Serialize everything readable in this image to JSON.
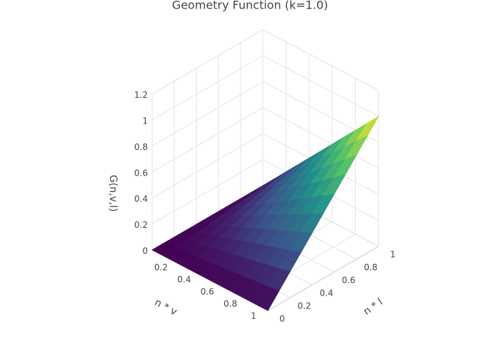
{
  "chart_data": {
    "type": "surface",
    "title": "Geometry Function (k=1.0)",
    "x_label": "n * v",
    "y_label": "n * l",
    "z_label": "G(n,v,l)",
    "x": [
      0,
      0.1,
      0.2,
      0.3,
      0.4,
      0.5,
      0.6,
      0.7,
      0.8,
      0.9,
      1
    ],
    "y": [
      0,
      0.1,
      0.2,
      0.3,
      0.4,
      0.5,
      0.6,
      0.7,
      0.8,
      0.9,
      1
    ],
    "z": [
      [
        0,
        0,
        0,
        0,
        0,
        0,
        0,
        0,
        0,
        0,
        0
      ],
      [
        0,
        0.01,
        0.02,
        0.03,
        0.04,
        0.05,
        0.06,
        0.07,
        0.08,
        0.09,
        0.1
      ],
      [
        0,
        0.02,
        0.04,
        0.06,
        0.08,
        0.1,
        0.12,
        0.14,
        0.16,
        0.18,
        0.2
      ],
      [
        0,
        0.03,
        0.06,
        0.09,
        0.12,
        0.15,
        0.18,
        0.21,
        0.24,
        0.27,
        0.3
      ],
      [
        0,
        0.04,
        0.08,
        0.12,
        0.16,
        0.2,
        0.24,
        0.28,
        0.32,
        0.36,
        0.4
      ],
      [
        0,
        0.05,
        0.1,
        0.15,
        0.2,
        0.25,
        0.3,
        0.35,
        0.4,
        0.45,
        0.5
      ],
      [
        0,
        0.06,
        0.12,
        0.18,
        0.24,
        0.3,
        0.36,
        0.42,
        0.48,
        0.54,
        0.6
      ],
      [
        0,
        0.07,
        0.14,
        0.21,
        0.28,
        0.35,
        0.42,
        0.49,
        0.56,
        0.63,
        0.7
      ],
      [
        0,
        0.08,
        0.16,
        0.24,
        0.32,
        0.4,
        0.48,
        0.56,
        0.64,
        0.72,
        0.8
      ],
      [
        0,
        0.09,
        0.18,
        0.27,
        0.36,
        0.45,
        0.54,
        0.63,
        0.72,
        0.81,
        0.9
      ],
      [
        0,
        0.1,
        0.2,
        0.3,
        0.4,
        0.5,
        0.6,
        0.7,
        0.8,
        0.9,
        1
      ]
    ],
    "colorscale": [
      "#440154",
      "#3b528b",
      "#21918c",
      "#5ec962",
      "#fde725"
    ],
    "xlim": [
      0,
      1
    ],
    "ylim": [
      0,
      1
    ],
    "zlim": [
      0,
      1.2
    ],
    "xticks": [
      0.2,
      0.4,
      0.6,
      0.8,
      1
    ],
    "yticks": [
      0,
      0.2,
      0.4,
      0.6,
      0.8,
      1
    ],
    "zticks": [
      0,
      0.2,
      0.4,
      0.6,
      0.8,
      1,
      1.2
    ],
    "grid": true
  }
}
